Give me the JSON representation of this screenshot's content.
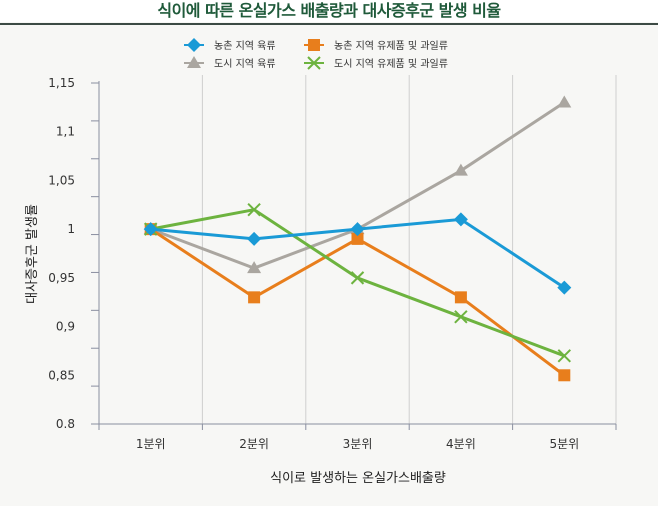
{
  "chart_data": {
    "type": "line",
    "title": "식이에 따른 온실가스 배출량과 대사증후군 발생 비율",
    "xlabel": "식이로 발생하는 온실가스배출량",
    "ylabel": "대사증후군 발생률",
    "categories": [
      "1분위",
      "2분위",
      "3분위",
      "4분위",
      "5분위"
    ],
    "ylim": [
      0.8,
      1.15
    ],
    "yticks": [
      0.8,
      0.85,
      0.9,
      0.95,
      1,
      1.05,
      1.1,
      1.15
    ],
    "ytick_labels": [
      "0.8",
      "0,85",
      "0,9",
      "0,95",
      "1",
      "1,05",
      "1,1",
      "1,15"
    ],
    "grid": "vertical",
    "legend_position": "top",
    "series": [
      {
        "name": "농촌 지역 육류",
        "color": "#1a9ad6",
        "marker": "diamond",
        "values": [
          1.0,
          0.99,
          1.0,
          1.01,
          0.94
        ]
      },
      {
        "name": "농촌 지역 유제품 및 과일류",
        "color": "#e87e1c",
        "marker": "square",
        "values": [
          1.0,
          0.93,
          0.99,
          0.93,
          0.85
        ]
      },
      {
        "name": "도시 지역 육류",
        "color": "#aaa6a0",
        "marker": "triangle",
        "values": [
          1.0,
          0.96,
          1.0,
          1.06,
          1.13
        ]
      },
      {
        "name": "도시 지역 유제품 및 과일류",
        "color": "#6db33f",
        "marker": "x",
        "values": [
          1.0,
          1.02,
          0.95,
          0.91,
          0.87
        ]
      }
    ]
  }
}
